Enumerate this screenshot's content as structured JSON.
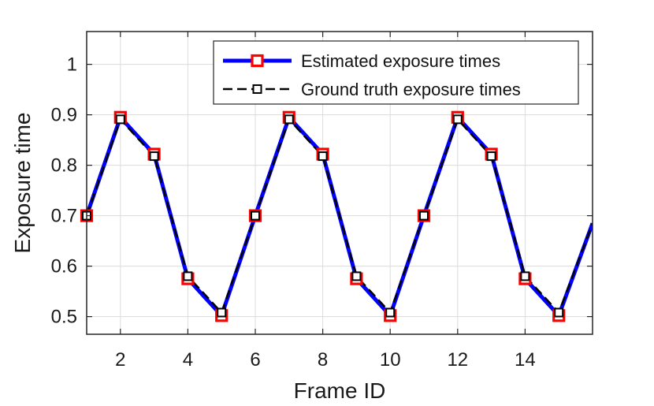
{
  "chart_data": {
    "type": "line",
    "xlabel": "Frame ID",
    "ylabel": "Exposure time",
    "xlim": [
      1,
      16
    ],
    "ylim": [
      0.465,
      1.065
    ],
    "xticks": [
      2,
      4,
      6,
      8,
      10,
      12,
      14
    ],
    "yticks": [
      0.5,
      0.6,
      0.7,
      0.8,
      0.9,
      1
    ],
    "ytick_labels": [
      "0.5",
      "0.6",
      "0.7",
      "0.8",
      "0.9",
      "1"
    ],
    "grid": true,
    "legend_position": "top-right",
    "x": [
      1,
      2,
      3,
      4,
      5,
      6,
      7,
      8,
      9,
      10,
      11,
      12,
      13,
      14,
      15,
      16
    ],
    "series": [
      {
        "name": "Estimated exposure times",
        "color": "#0000ff",
        "marker_color": "#ff0000",
        "values": [
          0.7,
          0.895,
          0.822,
          0.575,
          0.502,
          0.7,
          0.895,
          0.822,
          0.575,
          0.502,
          0.7,
          0.895,
          0.822,
          0.575,
          0.502,
          0.685
        ]
      },
      {
        "name": "Ground truth exposure times",
        "color": "#000000",
        "marker_color": "#000000",
        "values": [
          0.7,
          0.891,
          0.818,
          0.58,
          0.508,
          0.7,
          0.891,
          0.818,
          0.58,
          0.508,
          0.7,
          0.891,
          0.818,
          0.58,
          0.508,
          0.685
        ]
      }
    ]
  }
}
